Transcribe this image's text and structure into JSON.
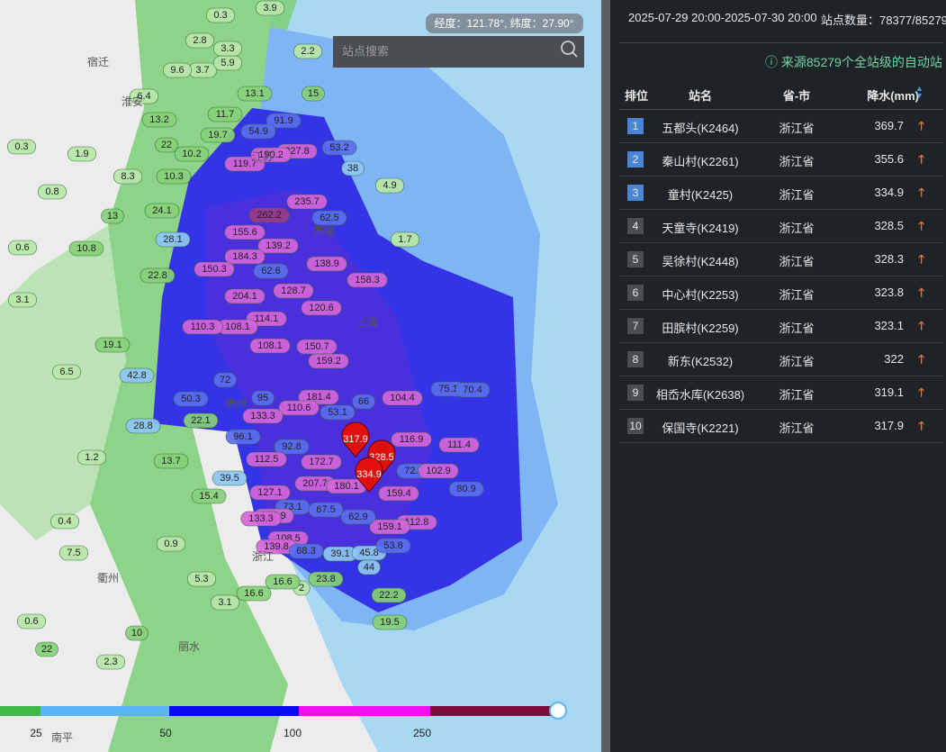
{
  "header": {
    "period": "2025-07-29 20:00-2025-07-30 20:00",
    "station_count": "站点数量：78377/85279"
  },
  "source_note": "来源85279个全站级的自动站",
  "table": {
    "columns": [
      "排位",
      "站名",
      "省-市",
      "降水(mm)"
    ],
    "rows": [
      [
        1,
        "五都头(K2464)",
        "浙江省",
        369.7
      ],
      [
        2,
        "秦山村(K2261)",
        "浙江省",
        355.6
      ],
      [
        3,
        "童村(K2425)",
        "浙江省",
        334.9
      ],
      [
        4,
        "天童寺(K2419)",
        "浙江省",
        328.5
      ],
      [
        5,
        "吴徐村(K2448)",
        "浙江省",
        328.3
      ],
      [
        6,
        "中心村(K2253)",
        "浙江省",
        323.8
      ],
      [
        7,
        "田膑村(K2259)",
        "浙江省",
        323.1
      ],
      [
        8,
        "新东(K2532)",
        "浙江省",
        322
      ],
      [
        9,
        "相岙水库(K2638)",
        "浙江省",
        319.1
      ],
      [
        10,
        "保国寺(K2221)",
        "浙江省",
        317.9
      ]
    ]
  },
  "map": {
    "search_placeholder": "站点搜索",
    "coordinates": "经度：121.78°, 纬度：27.90°",
    "places": [
      "宿迁",
      "淮安",
      "江苏",
      "南通",
      "上海",
      "杭州",
      "浙江",
      "衢州",
      "丽水",
      "南平"
    ],
    "stations": [
      0.3,
      3.9,
      2.8,
      3.7,
      9.6,
      5.9,
      3.3,
      13.1,
      6.4,
      13.2,
      11.7,
      19.7,
      22,
      10.2,
      1.9,
      0.3,
      8.3,
      10.3,
      0.8,
      24.1,
      13,
      28.1,
      10.8,
      0.6,
      22.8,
      3.1,
      19.1,
      6.5,
      42.8,
      50.3,
      28.8,
      22.1,
      13.7,
      39.5,
      15.4,
      91.9,
      54.9,
      227.8,
      119.7,
      190.2,
      53.2,
      38,
      15,
      2.2,
      4.9,
      1.7,
      262.2,
      235.7,
      62.5,
      155.6,
      139.2,
      138.9,
      184.3,
      150.3,
      62.6,
      204.1,
      128.7,
      158.3,
      120.6,
      114.1,
      108.1,
      110.3,
      108.1,
      150.7,
      159.2,
      72,
      95,
      181.4,
      66,
      104.4,
      75.1,
      70.4,
      110.6,
      53.1,
      133.3,
      96.1,
      92.8,
      112.5,
      172.7,
      116.9,
      111.4,
      72.2,
      102.9,
      80.9,
      207.7,
      180.1,
      127.1,
      73.1,
      131.9,
      67.5,
      159.4,
      133.3,
      112.8,
      159.1,
      62.9,
      108.5,
      139.8,
      68.3,
      39.1,
      45.8,
      44,
      53.8,
      23.8,
      2,
      22.2,
      19.5,
      16.6,
      16.6,
      7.5,
      0.4,
      1.2,
      0.9,
      5.3,
      3.1,
      10,
      22,
      2.3,
      0.6
    ],
    "pins": [
      317.9,
      328.5,
      334.9
    ],
    "legend": {
      "labels": [
        25,
        50,
        100,
        250
      ]
    }
  }
}
